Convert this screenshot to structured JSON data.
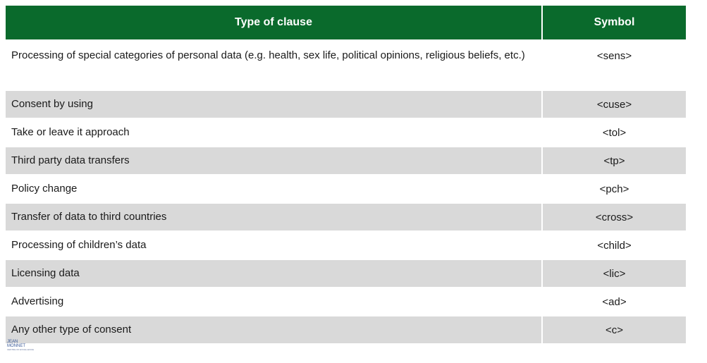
{
  "table": {
    "headers": {
      "type": "Type of clause",
      "symbol": "Symbol"
    },
    "rows": [
      {
        "type": "Processing of special categories of personal data (e.g. health, sex life, political opinions, religious beliefs, etc.)",
        "symbol": "<sens>"
      },
      {
        "type": "Consent by using",
        "symbol": "<cuse>"
      },
      {
        "type": "Take or leave it approach",
        "symbol": "<tol>"
      },
      {
        "type": "Third party data transfers",
        "symbol": "<tp>"
      },
      {
        "type": "Policy change",
        "symbol": "<pch>"
      },
      {
        "type": "Transfer of data to third countries",
        "symbol": "<cross>"
      },
      {
        "type": "Processing of children’s data",
        "symbol": "<child>"
      },
      {
        "type": "Licensing data",
        "symbol": "<lic>"
      },
      {
        "type": "Advertising",
        "symbol": "<ad>"
      },
      {
        "type": "Any other type of consent",
        "symbol": "<c>"
      }
    ]
  },
  "logo": {
    "text": "JEAN MONNET",
    "sub": "CENTRE OF EXCELLENCE"
  },
  "colors": {
    "header_bg": "#0a6a2c",
    "stripe": "#d9d9d9"
  }
}
